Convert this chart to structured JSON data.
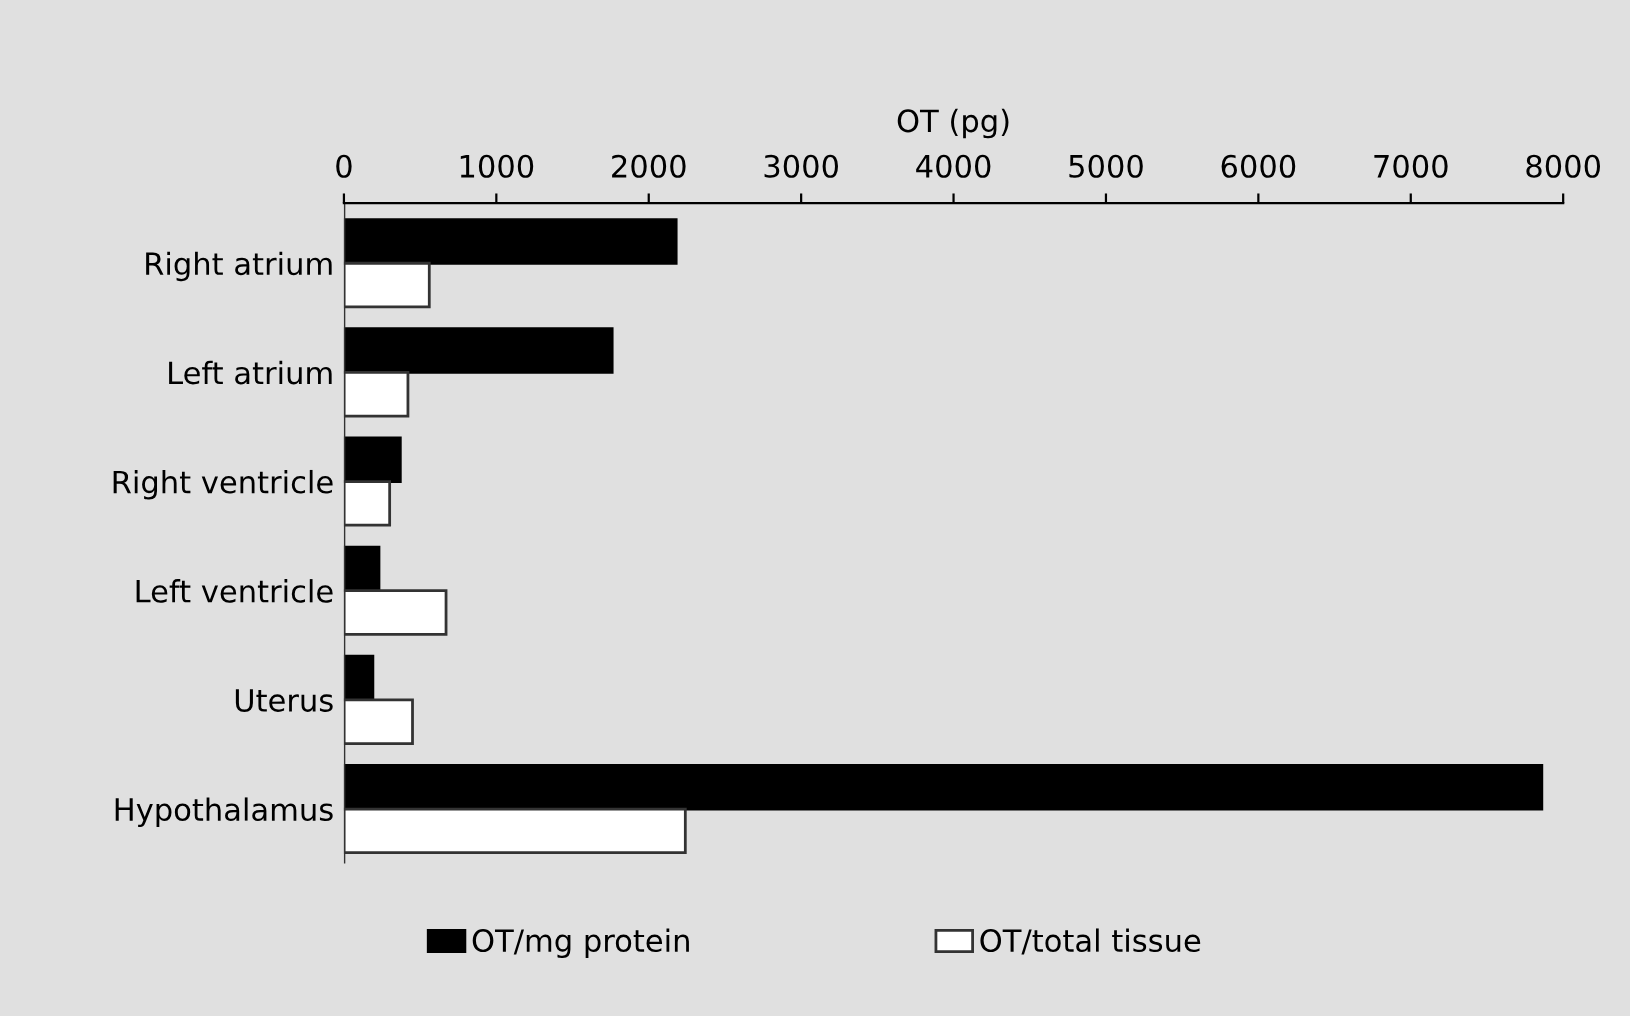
{
  "chart_data": {
    "type": "bar",
    "orientation": "horizontal",
    "xlabel": "OT (pg)",
    "categories": [
      "Right atrium",
      "Left atrium",
      "Right ventricle",
      "Left ventricle",
      "Uterus",
      "Hypothalamus"
    ],
    "series": [
      {
        "name": "OT/mg protein",
        "color": "#000000",
        "values": [
          2180,
          1760,
          370,
          230,
          190,
          7860
        ]
      },
      {
        "name": "OT/total tissue",
        "color": "#ffffff",
        "values": [
          560,
          420,
          300,
          670,
          450,
          2240
        ]
      }
    ],
    "xlim": [
      0,
      8000
    ],
    "xticks": [
      0,
      1000,
      2000,
      3000,
      4000,
      5000,
      6000,
      7000,
      8000
    ],
    "grid": false,
    "legend": "bottom"
  }
}
